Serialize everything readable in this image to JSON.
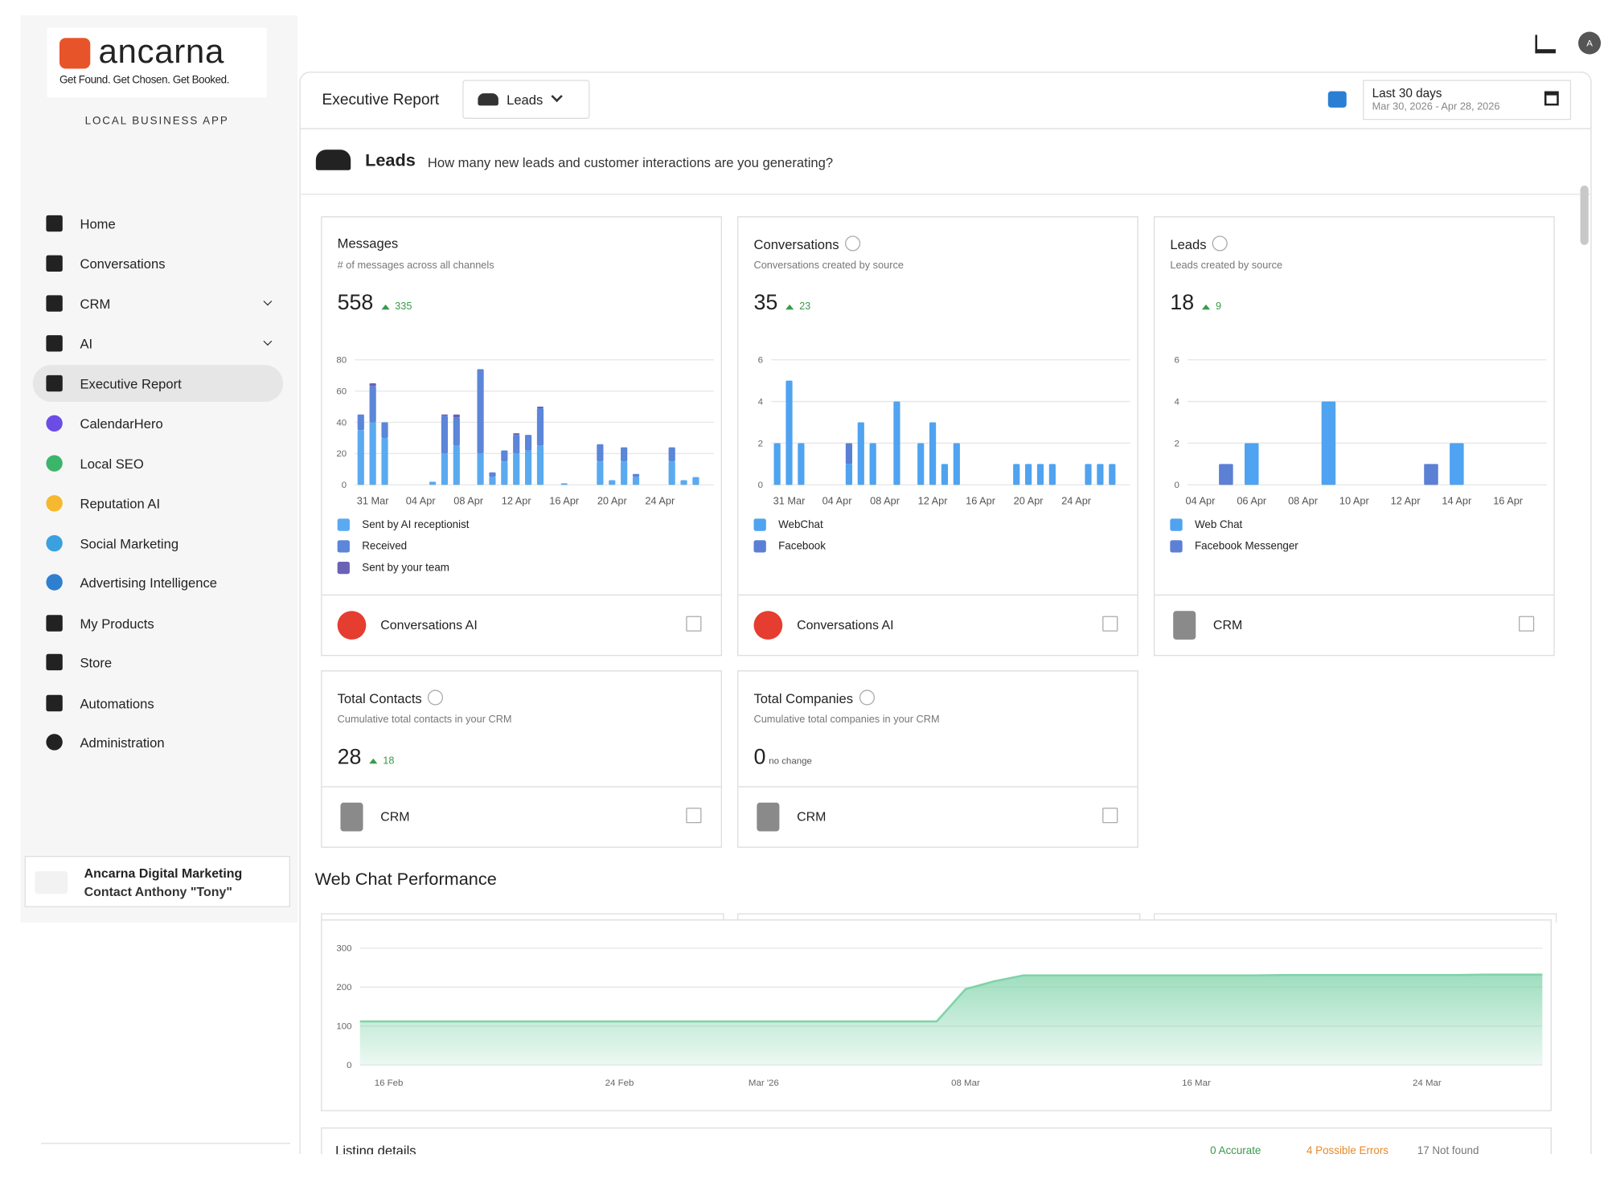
{
  "logo": {
    "brand": "ancarna",
    "tagline": "Get Found. Get Chosen. Get Booked."
  },
  "app_label": "LOCAL BUSINESS APP",
  "nav": [
    "Home",
    "Conversations",
    "CRM",
    "AI",
    "Executive Report",
    "CalendarHero",
    "Local SEO",
    "Reputation AI",
    "Social Marketing",
    "Advertising Intelligence",
    "My Products",
    "Store",
    "Automations",
    "Administration"
  ],
  "account": {
    "name": "Ancarna Digital Marketing",
    "contact": "Contact Anthony \"Tony\""
  },
  "avatar": "A",
  "toolbar": {
    "title": "Executive Report",
    "dropdown": "Leads",
    "range": "Last 30 days",
    "dates": "Mar 30, 2026 - Apr 28, 2026"
  },
  "section": {
    "title": "Leads",
    "question": "How many new leads and customer interactions are you generating?"
  },
  "cards": [
    {
      "title": "Messages",
      "subtitle": "# of messages across all channels",
      "total": 558,
      "change": 335,
      "footer": "Conversations AI"
    },
    {
      "title": "Conversations",
      "subtitle": "Conversations created by source",
      "total": 35,
      "change": 23,
      "footer": "Conversations AI"
    },
    {
      "title": "Leads",
      "subtitle": "Leads created by source",
      "total": 18,
      "change": 9,
      "footer": "CRM"
    }
  ],
  "stat_cards": [
    {
      "title": "Total Contacts",
      "subtitle": "Cumulative total contacts in your CRM",
      "total": 28,
      "change": 18,
      "footer": "CRM"
    },
    {
      "title": "Total Companies",
      "subtitle": "Cumulative total companies in your CRM",
      "total": 0,
      "change": "no change",
      "footer": "CRM"
    }
  ],
  "web_chat": {
    "title": "Web Chat Performance"
  },
  "listing": {
    "title": "Listing details",
    "accurate": "0 Accurate",
    "errors": "4 Possible Errors",
    "not_found": "17 Not found"
  },
  "chart_data": [
    {
      "type": "bar",
      "stacked": true,
      "grid": true,
      "categories": [
        null,
        "31 Mar",
        null,
        null,
        null,
        "04 Apr",
        null,
        null,
        null,
        "08 Apr",
        null,
        null,
        null,
        "12 Apr",
        null,
        null,
        null,
        "16 Apr",
        null,
        null,
        null,
        "20 Apr",
        null,
        null,
        null,
        "24 Apr",
        null,
        null,
        null,
        null
      ],
      "series": [
        {
          "name": "Sent by AI receptionist",
          "color": "#5aaaf0",
          "values": [
            35,
            40,
            30,
            0,
            0,
            0,
            2,
            20,
            25,
            0,
            20,
            5,
            15,
            20,
            22,
            25,
            0,
            1,
            0,
            0,
            15,
            3,
            15,
            5,
            0,
            0,
            15,
            3,
            5,
            0
          ]
        },
        {
          "name": "Received",
          "color": "#5b86d9",
          "values": [
            10,
            23,
            10,
            0,
            0,
            0,
            0,
            24,
            18,
            0,
            54,
            3,
            7,
            12,
            10,
            24,
            0,
            0,
            0,
            0,
            11,
            0,
            9,
            2,
            0,
            0,
            9,
            0,
            0,
            0
          ]
        },
        {
          "name": "Sent by your team",
          "color": "#6a62b5",
          "values": [
            0,
            2,
            0,
            0,
            0,
            0,
            0,
            1,
            2,
            0,
            0,
            0,
            0,
            1,
            0,
            1,
            0,
            0,
            0,
            0,
            0,
            0,
            0,
            0,
            0,
            0,
            0,
            0,
            0,
            0
          ]
        }
      ],
      "ylim": [
        0,
        80
      ],
      "yticks": [
        0,
        20,
        40,
        60,
        80
      ]
    },
    {
      "type": "bar",
      "stacked": true,
      "grid": true,
      "categories": [
        null,
        "31 Mar",
        null,
        null,
        null,
        "04 Apr",
        null,
        null,
        null,
        "08 Apr",
        null,
        null,
        null,
        "12 Apr",
        null,
        null,
        null,
        "16 Apr",
        null,
        null,
        null,
        "20 Apr",
        null,
        null,
        null,
        "24 Apr",
        null,
        null,
        null,
        null
      ],
      "series": [
        {
          "name": "WebChat",
          "color": "#4fa3f0",
          "values": [
            2,
            5,
            2,
            0,
            0,
            0,
            1,
            3,
            2,
            0,
            4,
            0,
            2,
            3,
            1,
            2,
            0,
            0,
            0,
            0,
            1,
            1,
            1,
            1,
            0,
            0,
            1,
            1,
            1,
            0
          ]
        },
        {
          "name": "Facebook",
          "color": "#5b7fd6",
          "values": [
            0,
            0,
            0,
            0,
            0,
            0,
            1,
            0,
            0,
            0,
            0,
            0,
            0,
            0,
            0,
            0,
            0,
            0,
            0,
            0,
            0,
            0,
            0,
            0,
            0,
            0,
            0,
            0,
            0,
            0
          ]
        }
      ],
      "ylim": [
        0,
        6
      ],
      "yticks": [
        0,
        2,
        4,
        6
      ]
    },
    {
      "type": "bar",
      "stacked": true,
      "grid": true,
      "categories": [
        "04 Apr",
        null,
        "06 Apr",
        null,
        "08 Apr",
        null,
        "10 Apr",
        null,
        "12 Apr",
        null,
        "14 Apr",
        null,
        "16 Apr",
        null
      ],
      "series": [
        {
          "name": "Web Chat",
          "color": "#4fa3f0",
          "values": [
            0,
            0,
            2,
            0,
            0,
            4,
            0,
            0,
            0,
            0,
            2,
            0,
            0,
            0
          ]
        },
        {
          "name": "Facebook Messenger",
          "color": "#5c80d4",
          "values": [
            0,
            1,
            0,
            0,
            0,
            0,
            0,
            0,
            0,
            1,
            0,
            0,
            0,
            0
          ]
        }
      ],
      "ylim": [
        0,
        6
      ],
      "yticks": [
        0,
        2,
        4,
        6
      ]
    },
    {
      "type": "area",
      "grid": true,
      "color": "#7fd3a9",
      "categories": [
        null,
        "16 Feb",
        null,
        null,
        null,
        null,
        null,
        null,
        null,
        "24 Feb",
        null,
        null,
        null,
        null,
        "Mar '26",
        null,
        null,
        null,
        null,
        null,
        null,
        "08 Mar",
        null,
        null,
        null,
        null,
        null,
        null,
        null,
        "16 Mar",
        null,
        null,
        null,
        null,
        null,
        null,
        null,
        "24 Mar",
        null,
        null,
        null,
        null
      ],
      "values": [
        112,
        112,
        112,
        112,
        112,
        112,
        112,
        112,
        112,
        112,
        112,
        112,
        112,
        112,
        112,
        112,
        112,
        112,
        112,
        112,
        112,
        195,
        215,
        230,
        230,
        230,
        230,
        230,
        230,
        230,
        230,
        230,
        231,
        231,
        231,
        231,
        231,
        231,
        231,
        232,
        232,
        232
      ],
      "ylim": [
        0,
        300
      ],
      "yticks": [
        0,
        100,
        200,
        300
      ]
    }
  ]
}
